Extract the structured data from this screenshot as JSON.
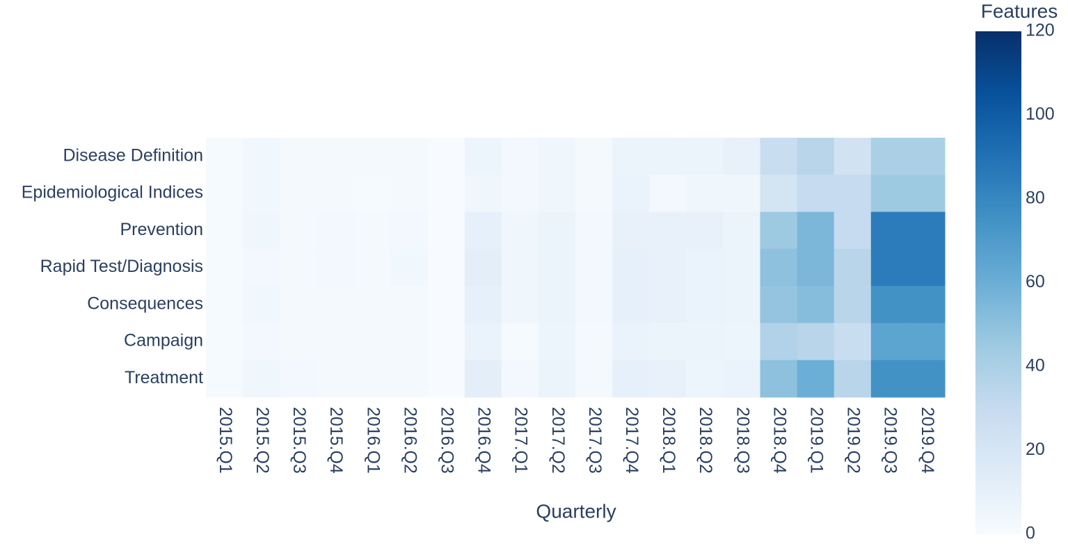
{
  "chart_data": {
    "type": "heatmap",
    "x_title": "Quarterly",
    "colorbar_title": "Features",
    "x": [
      "2015.Q1",
      "2015.Q2",
      "2015.Q3",
      "2015.Q4",
      "2016.Q1",
      "2016.Q2",
      "2016.Q3",
      "2016.Q4",
      "2017.Q1",
      "2017.Q2",
      "2017.Q3",
      "2017.Q4",
      "2018.Q1",
      "2018.Q2",
      "2018.Q3",
      "2018.Q4",
      "2019.Q1",
      "2019.Q2",
      "2019.Q3",
      "2019.Q4"
    ],
    "y": [
      "Disease Definition",
      "Epidemiological Indices",
      "Prevention",
      "Rapid Test/Diagnosis",
      "Consequences",
      "Campaign",
      "Treatment"
    ],
    "z": [
      [
        1,
        4,
        2,
        2,
        2,
        2,
        0,
        6,
        3,
        5,
        2,
        7,
        7,
        7,
        9,
        28,
        35,
        23,
        40,
        40
      ],
      [
        1,
        4,
        2,
        2,
        1,
        2,
        0,
        5,
        3,
        5,
        2,
        8,
        3,
        5,
        5,
        22,
        30,
        30,
        45,
        45
      ],
      [
        1,
        5,
        2,
        3,
        2,
        3,
        0,
        10,
        5,
        7,
        3,
        9,
        9,
        9,
        7,
        45,
        55,
        30,
        85,
        85
      ],
      [
        1,
        3,
        2,
        3,
        2,
        4,
        0,
        12,
        5,
        7,
        3,
        10,
        9,
        8,
        7,
        50,
        55,
        35,
        85,
        85
      ],
      [
        1,
        4,
        2,
        2,
        2,
        2,
        0,
        10,
        5,
        7,
        3,
        10,
        9,
        8,
        7,
        48,
        52,
        35,
        75,
        75
      ],
      [
        1,
        3,
        2,
        2,
        2,
        2,
        0,
        8,
        1,
        6,
        2,
        8,
        7,
        7,
        6,
        38,
        35,
        28,
        65,
        65
      ],
      [
        1,
        5,
        3,
        2,
        2,
        2,
        0,
        12,
        3,
        7,
        2,
        10,
        9,
        6,
        8,
        50,
        60,
        35,
        75,
        75
      ]
    ],
    "zlim": [
      0,
      120
    ],
    "zticks": [
      0,
      20,
      40,
      60,
      80,
      100,
      120
    ],
    "colorscale": [
      "#f7fbff",
      "#deebf7",
      "#c6dbef",
      "#9ecae1",
      "#6baed6",
      "#4292c6",
      "#2171b5",
      "#08519c",
      "#08306b"
    ]
  }
}
